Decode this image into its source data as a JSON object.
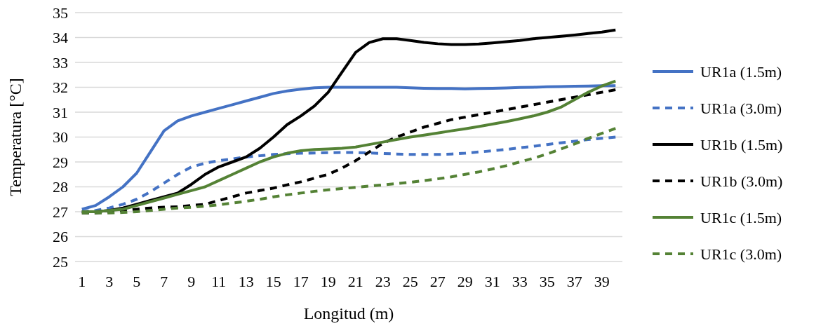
{
  "chart_data": {
    "type": "line",
    "xlabel": "Longitud (m)",
    "ylabel": "Temperatura [°C]",
    "x": [
      1,
      2,
      3,
      4,
      5,
      6,
      7,
      8,
      9,
      10,
      11,
      12,
      13,
      14,
      15,
      16,
      17,
      18,
      19,
      20,
      21,
      22,
      23,
      24,
      25,
      26,
      27,
      28,
      29,
      30,
      31,
      32,
      33,
      34,
      35,
      36,
      37,
      38,
      39,
      40
    ],
    "xlim": [
      0.5,
      40.5
    ],
    "xticks": [
      1,
      3,
      5,
      7,
      9,
      11,
      13,
      15,
      17,
      19,
      21,
      23,
      25,
      27,
      29,
      31,
      33,
      35,
      37,
      39
    ],
    "ylim": [
      25,
      35
    ],
    "yticks": [
      25,
      26,
      27,
      28,
      29,
      30,
      31,
      32,
      33,
      34,
      35
    ],
    "grid": "y",
    "legend": "right",
    "series": [
      {
        "name": "UR1a (1.5m)",
        "color": "#4472c4",
        "line_style": "solid",
        "values": [
          27.1,
          27.25,
          27.6,
          28.0,
          28.55,
          29.4,
          30.25,
          30.65,
          30.85,
          31.0,
          31.15,
          31.3,
          31.45,
          31.6,
          31.75,
          31.85,
          31.92,
          31.98,
          32.0,
          32.0,
          32.0,
          32.0,
          32.0,
          32.0,
          31.98,
          31.96,
          31.95,
          31.95,
          31.94,
          31.95,
          31.96,
          31.97,
          31.99,
          32.0,
          32.02,
          32.03,
          32.04,
          32.05,
          32.06,
          32.06
        ]
      },
      {
        "name": "UR1a (3.0m)",
        "color": "#4472c4",
        "line_style": "dashed",
        "values": [
          27.0,
          27.05,
          27.15,
          27.3,
          27.5,
          27.8,
          28.15,
          28.5,
          28.8,
          28.95,
          29.05,
          29.12,
          29.2,
          29.25,
          29.3,
          29.33,
          29.35,
          29.36,
          29.37,
          29.38,
          29.38,
          29.36,
          29.34,
          29.32,
          29.3,
          29.3,
          29.3,
          29.32,
          29.35,
          29.4,
          29.45,
          29.5,
          29.57,
          29.63,
          29.7,
          29.77,
          29.83,
          29.9,
          29.95,
          30.0
        ]
      },
      {
        "name": "UR1b (1.5m)",
        "color": "#000000",
        "line_style": "solid",
        "values": [
          27.0,
          27.0,
          27.05,
          27.15,
          27.3,
          27.45,
          27.6,
          27.75,
          28.1,
          28.5,
          28.8,
          29.0,
          29.2,
          29.55,
          30.0,
          30.5,
          30.85,
          31.25,
          31.8,
          32.6,
          33.4,
          33.8,
          33.95,
          33.95,
          33.88,
          33.8,
          33.75,
          33.72,
          33.72,
          33.74,
          33.78,
          33.83,
          33.88,
          33.95,
          34.0,
          34.05,
          34.1,
          34.16,
          34.22,
          34.3
        ]
      },
      {
        "name": "UR1b (3.0m)",
        "color": "#000000",
        "line_style": "dashed",
        "values": [
          26.95,
          26.95,
          27.0,
          27.05,
          27.1,
          27.15,
          27.18,
          27.2,
          27.25,
          27.3,
          27.45,
          27.6,
          27.75,
          27.85,
          27.95,
          28.08,
          28.2,
          28.35,
          28.5,
          28.75,
          29.05,
          29.4,
          29.75,
          30.0,
          30.2,
          30.4,
          30.55,
          30.7,
          30.8,
          30.9,
          31.0,
          31.1,
          31.2,
          31.3,
          31.4,
          31.5,
          31.6,
          31.7,
          31.8,
          31.9
        ]
      },
      {
        "name": "UR1c (1.5m)",
        "color": "#548235",
        "line_style": "solid",
        "values": [
          27.0,
          27.0,
          27.05,
          27.1,
          27.25,
          27.4,
          27.55,
          27.7,
          27.85,
          28.0,
          28.25,
          28.5,
          28.75,
          29.0,
          29.2,
          29.35,
          29.45,
          29.5,
          29.52,
          29.55,
          29.6,
          29.7,
          29.8,
          29.9,
          30.0,
          30.08,
          30.16,
          30.25,
          30.33,
          30.42,
          30.52,
          30.62,
          30.73,
          30.85,
          31.0,
          31.2,
          31.5,
          31.8,
          32.05,
          32.25
        ]
      },
      {
        "name": "UR1c (3.0m)",
        "color": "#548235",
        "line_style": "dashed",
        "values": [
          26.95,
          26.95,
          26.95,
          26.97,
          27.0,
          27.05,
          27.1,
          27.15,
          27.18,
          27.22,
          27.28,
          27.35,
          27.42,
          27.5,
          27.6,
          27.68,
          27.75,
          27.82,
          27.88,
          27.93,
          27.98,
          28.03,
          28.08,
          28.13,
          28.18,
          28.25,
          28.32,
          28.4,
          28.5,
          28.6,
          28.72,
          28.85,
          29.0,
          29.15,
          29.32,
          29.52,
          29.72,
          29.95,
          30.15,
          30.35
        ]
      }
    ]
  }
}
